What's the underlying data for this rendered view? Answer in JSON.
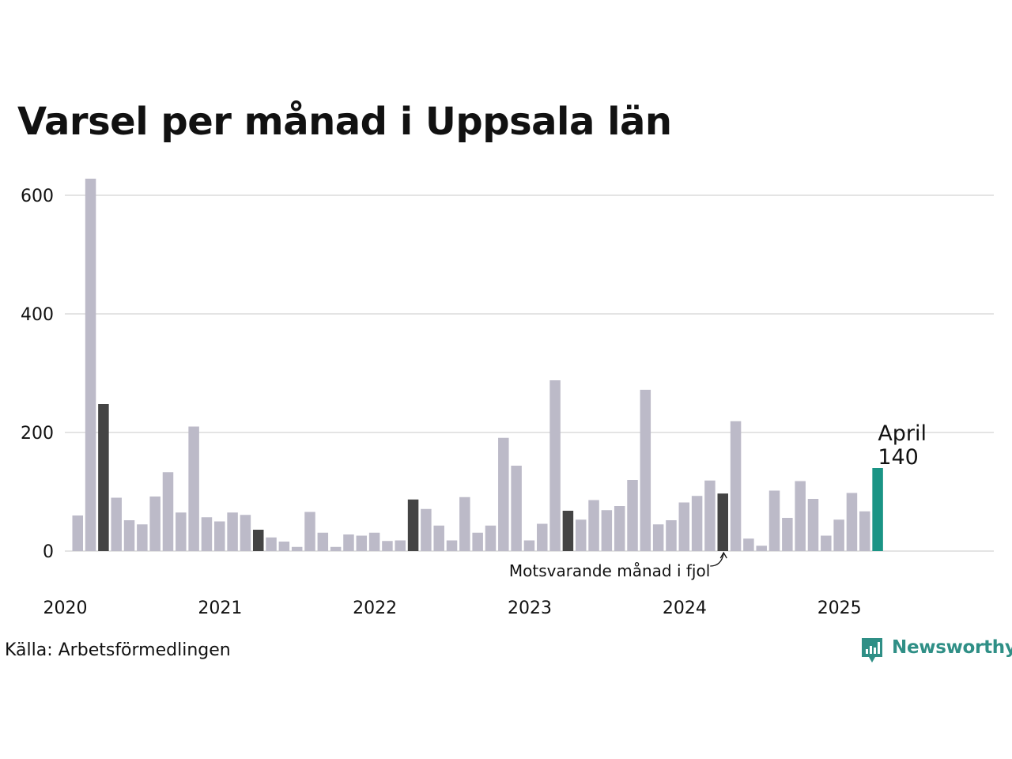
{
  "chart_data": {
    "type": "bar",
    "title": "Varsel per månad i Uppsala län",
    "source": "Källa: Arbetsförmedlingen",
    "brand": "Newsworthy",
    "ylim": [
      0,
      650
    ],
    "y_ticks": [
      0,
      200,
      400,
      600
    ],
    "x_ticks": [
      "2020",
      "2021",
      "2022",
      "2023",
      "2024",
      "2025"
    ],
    "grid": true,
    "start_year": 2020,
    "colors": {
      "default": "#bcbac8",
      "same_month": "#444444",
      "current": "#1a9485",
      "grid": "#e4e4e4"
    },
    "series": [
      {
        "values": [
          60,
          628,
          248,
          90,
          52,
          45,
          92,
          133,
          65,
          210,
          57,
          50,
          65,
          61,
          36,
          23,
          16,
          7,
          66,
          31,
          7,
          28,
          26,
          31,
          17,
          18,
          87,
          71,
          43,
          18,
          91,
          31,
          43,
          191,
          144,
          18,
          46,
          288,
          68,
          53,
          86,
          69,
          76,
          120,
          272,
          45,
          52,
          82,
          93,
          119,
          97,
          219,
          21,
          9,
          102,
          56,
          118,
          88,
          26,
          53,
          98,
          67,
          140
        ],
        "highlight": {
          "same_month_indices": [
            2,
            14,
            26,
            38,
            50
          ],
          "current_index": 62
        }
      }
    ],
    "annotations": {
      "current_month_name": "April",
      "current_value": "140",
      "same_month_text": "Motsvarande månad i fjol"
    }
  }
}
